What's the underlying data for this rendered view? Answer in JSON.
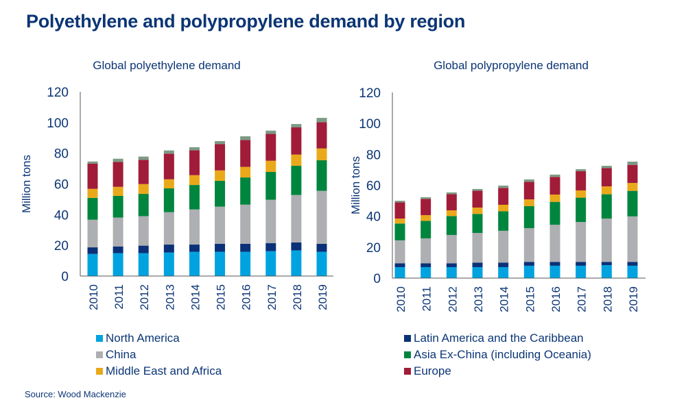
{
  "title": "Polyethylene and polypropylene demand by region",
  "source": "Source: Wood Mackenzie",
  "colors": {
    "North America": "#00a3e0",
    "Latin America and the Caribbean": "#0a3178",
    "China": "#adafb2",
    "Asia Ex-China (including Oceania)": "#00853f",
    "Middle East and Africa": "#eaa91a",
    "Europe": "#a11c38",
    "other": "#7c9a84"
  },
  "legend": {
    "left": [
      "North America",
      "China",
      "Middle East and Africa"
    ],
    "right": [
      "Latin America and the Caribbean",
      "Asia Ex-China (including Oceania)",
      "Europe"
    ]
  },
  "chart_data": [
    {
      "type": "bar",
      "stacked": true,
      "title": "Global polyethylene demand",
      "ylabel": "Million tons",
      "xlabel": "",
      "ylim": [
        0,
        120
      ],
      "yticks": [
        0,
        20,
        40,
        60,
        80,
        100,
        120
      ],
      "grid": false,
      "categories": [
        "2010",
        "2011",
        "2012",
        "2013",
        "2014",
        "2015",
        "2016",
        "2017",
        "2018",
        "2019"
      ],
      "series": [
        {
          "name": "North America",
          "values": [
            14.4,
            14.9,
            14.9,
            15.3,
            15.8,
            15.8,
            15.8,
            16.2,
            16.7,
            15.8
          ]
        },
        {
          "name": "Latin America and the Caribbean",
          "values": [
            4.3,
            4.4,
            4.9,
            5.2,
            4.7,
            5.2,
            5.2,
            5.2,
            5.2,
            5.2
          ]
        },
        {
          "name": "China",
          "values": [
            18.0,
            18.8,
            19.2,
            21.1,
            22.9,
            24.2,
            25.5,
            28.3,
            30.9,
            34.5
          ]
        },
        {
          "name": "Asia Ex-China (including Oceania)",
          "values": [
            14.2,
            14.1,
            14.5,
            15.5,
            15.9,
            16.8,
            17.7,
            18.1,
            19.0,
            19.9
          ]
        },
        {
          "name": "Middle East and Africa",
          "values": [
            5.9,
            5.9,
            6.4,
            5.9,
            6.4,
            6.8,
            6.9,
            7.3,
            7.3,
            7.7
          ]
        },
        {
          "name": "Europe",
          "values": [
            16.4,
            16.2,
            15.8,
            16.7,
            16.2,
            17.1,
            17.5,
            17.5,
            17.7,
            17.1
          ]
        },
        {
          "name": "",
          "values": [
            1.4,
            2.1,
            2.1,
            2.1,
            2.0,
            2.0,
            2.4,
            2.1,
            2.2,
            2.8
          ]
        }
      ]
    },
    {
      "type": "bar",
      "stacked": true,
      "title": "Global polypropylene demand",
      "ylabel": "Million tons",
      "xlabel": "",
      "ylim": [
        0,
        120
      ],
      "yticks": [
        0,
        20,
        40,
        60,
        80,
        100,
        120
      ],
      "grid": false,
      "categories": [
        "2010",
        "2011",
        "2012",
        "2013",
        "2014",
        "2015",
        "2016",
        "2017",
        "2018",
        "2019"
      ],
      "series": [
        {
          "name": "North America",
          "values": [
            7.1,
            7.1,
            7.1,
            7.1,
            7.1,
            8.0,
            8.0,
            8.0,
            8.4,
            8.0
          ]
        },
        {
          "name": "Latin America and the Caribbean",
          "values": [
            2.5,
            2.5,
            2.5,
            2.9,
            2.9,
            2.5,
            2.5,
            2.5,
            2.1,
            2.5
          ]
        },
        {
          "name": "China",
          "values": [
            14.8,
            16.1,
            18.3,
            19.2,
            20.6,
            21.8,
            24.0,
            25.8,
            28.0,
            29.4
          ]
        },
        {
          "name": "Asia Ex-China (including Oceania)",
          "values": [
            10.9,
            11.3,
            12.2,
            12.3,
            12.6,
            14.2,
            14.8,
            15.7,
            15.7,
            16.5
          ]
        },
        {
          "name": "Middle East and Africa",
          "values": [
            3.2,
            3.7,
            3.7,
            4.1,
            4.2,
            4.4,
            4.7,
            4.7,
            5.1,
            5.1
          ]
        },
        {
          "name": "Europe",
          "values": [
            10.5,
            10.5,
            10.5,
            10.9,
            10.9,
            11.4,
            11.4,
            12.4,
            11.8,
            11.7
          ]
        },
        {
          "name": "",
          "values": [
            1.0,
            1.1,
            1.1,
            1.1,
            1.5,
            1.5,
            1.5,
            1.3,
            1.5,
            2.1
          ]
        }
      ]
    }
  ]
}
